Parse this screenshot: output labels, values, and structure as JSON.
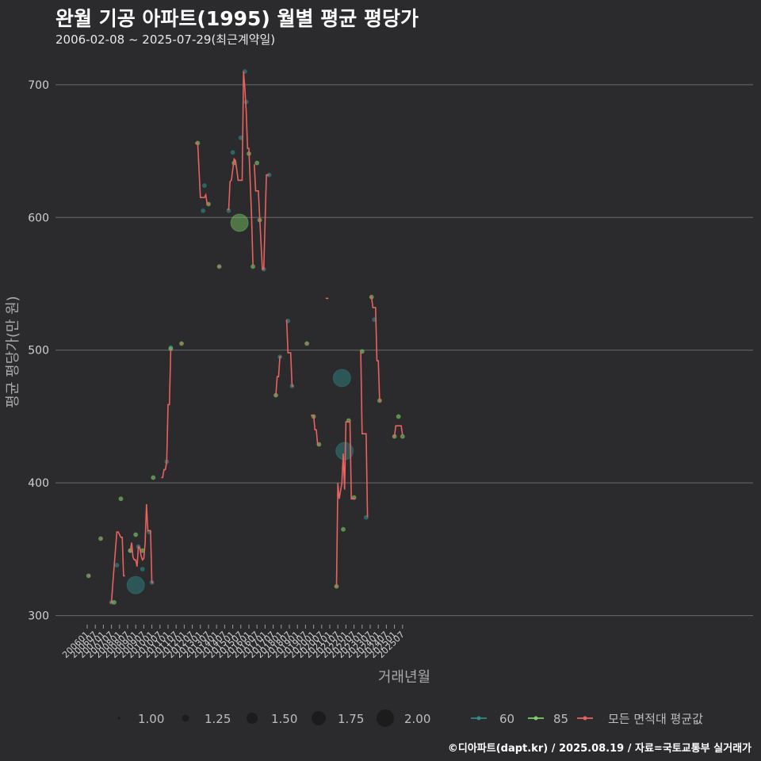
{
  "title": "완월 기공 아파트(1995) 월별 평균 평당가",
  "subtitle": "2006-02-08 ~ 2025-07-29(최근계약일)",
  "credit": "©디아파트(dapt.kr) / 2025.08.19 / 자료=국토교통부 실거래가",
  "colors": {
    "background": "#2b2b2d",
    "grid": "#6a6a6a",
    "avg": "#e8625f",
    "s60": "#2e8b8b",
    "s85": "#7ccf66"
  },
  "chart_data": {
    "type": "line",
    "title": "완월 기공 아파트(1995) 월별 평균 평당가",
    "xlabel": "거래년월",
    "ylabel": "평균 평당가(만 원)",
    "ylim": [
      295,
      722
    ],
    "yticks": [
      300,
      400,
      500,
      600,
      700
    ],
    "xticks": [
      "200601",
      "200607",
      "200701",
      "200707",
      "200801",
      "200807",
      "200901",
      "200907",
      "201001",
      "201007",
      "201101",
      "201107",
      "201201",
      "201207",
      "201301",
      "201307",
      "201401",
      "201407",
      "201501",
      "201507",
      "201601",
      "201607",
      "201701",
      "201707",
      "201801",
      "201807",
      "201901",
      "201907",
      "202001",
      "202007",
      "202101",
      "202107",
      "202201",
      "202207",
      "202301",
      "202307",
      "202401",
      "202407",
      "202501",
      "202507"
    ],
    "grid": true,
    "legend_position": "bottom",
    "size_legend": {
      "values": [
        "1.00",
        "1.25",
        "1.50",
        "1.75",
        "2.00"
      ]
    },
    "color_legend": [
      "60",
      "85",
      "모든 면적대 평균값"
    ],
    "avg_segments": [
      [
        [
          "2006-02",
          330
        ],
        [
          "2006-03",
          330
        ]
      ],
      [
        [
          "2006-11",
          358
        ],
        [
          "2006-12",
          358
        ]
      ],
      [
        [
          "2007-06",
          310
        ],
        [
          "2007-07",
          310
        ],
        [
          "2007-08",
          324
        ],
        [
          "2007-11",
          363
        ],
        [
          "2007-12",
          363
        ],
        [
          "2008-02",
          359
        ],
        [
          "2008-03",
          359
        ],
        [
          "2008-04",
          330
        ],
        [
          "2008-05",
          330
        ]
      ],
      [
        [
          "2008-08",
          349
        ],
        [
          "2008-09",
          349
        ],
        [
          "2008-10",
          355
        ],
        [
          "2008-11",
          344
        ],
        [
          "2008-12",
          342
        ],
        [
          "2009-01",
          342
        ],
        [
          "2009-02",
          337
        ],
        [
          "2009-03",
          352
        ],
        [
          "2009-04",
          351
        ],
        [
          "2009-05",
          345
        ],
        [
          "2009-06",
          342
        ],
        [
          "2009-07",
          343
        ],
        [
          "2009-08",
          355
        ],
        [
          "2009-09",
          384
        ],
        [
          "2009-10",
          364
        ],
        [
          "2009-12",
          364
        ],
        [
          "2010-01",
          325
        ],
        [
          "2010-02",
          325
        ]
      ],
      [
        [
          "2010-08",
          404
        ],
        [
          "2010-09",
          404
        ],
        [
          "2010-10",
          410
        ],
        [
          "2010-11",
          410
        ],
        [
          "2010-12",
          416
        ],
        [
          "2011-01",
          459
        ],
        [
          "2011-02",
          459
        ],
        [
          "2011-03",
          500
        ],
        [
          "2011-04",
          500
        ]
      ],
      [
        [
          "2011-10",
          505
        ],
        [
          "2011-12",
          505
        ]
      ],
      [
        [
          "2012-09",
          656
        ],
        [
          "2012-11",
          656
        ],
        [
          "2013-01",
          615
        ],
        [
          "2013-02",
          615
        ],
        [
          "2013-04",
          615
        ],
        [
          "2013-05",
          617
        ],
        [
          "2013-06",
          610
        ],
        [
          "2013-08",
          610
        ]
      ],
      [
        [
          "2014-02",
          563
        ],
        [
          "2014-04",
          563
        ]
      ],
      [
        [
          "2014-09",
          606
        ],
        [
          "2014-10",
          606
        ],
        [
          "2014-11",
          627
        ],
        [
          "2014-12",
          628
        ],
        [
          "2015-01",
          636
        ],
        [
          "2015-02",
          644
        ],
        [
          "2015-03",
          643
        ],
        [
          "2015-04",
          636
        ],
        [
          "2015-05",
          628
        ],
        [
          "2015-08",
          628
        ],
        [
          "2015-09",
          710
        ],
        [
          "2015-10",
          697
        ],
        [
          "2015-11",
          680
        ],
        [
          "2015-12",
          652
        ],
        [
          "2016-01",
          652
        ],
        [
          "2016-03",
          600
        ],
        [
          "2016-04",
          564
        ]
      ],
      [
        [
          "2016-05",
          640
        ],
        [
          "2016-06",
          620
        ],
        [
          "2016-08",
          620
        ],
        [
          "2016-09",
          600
        ],
        [
          "2016-10",
          580
        ],
        [
          "2016-11",
          561
        ],
        [
          "2016-12",
          561
        ],
        [
          "2017-02",
          632
        ],
        [
          "2017-04",
          632
        ]
      ],
      [
        [
          "2017-08",
          466
        ],
        [
          "2017-09",
          466
        ],
        [
          "2017-10",
          480
        ],
        [
          "2017-11",
          480
        ],
        [
          "2017-12",
          495
        ],
        [
          "2018-01",
          495
        ]
      ],
      [
        [
          "2018-05",
          523
        ],
        [
          "2018-06",
          498
        ],
        [
          "2018-08",
          498
        ],
        [
          "2018-09",
          473
        ],
        [
          "2018-10",
          473
        ]
      ],
      [
        [
          "2019-07",
          505
        ],
        [
          "2019-09",
          505
        ]
      ],
      [
        [
          "2019-11",
          451
        ],
        [
          "2020-01",
          451
        ],
        [
          "2020-02",
          440
        ],
        [
          "2020-03",
          440
        ],
        [
          "2020-04",
          429
        ],
        [
          "2020-05",
          429
        ]
      ],
      [
        [
          "2020-10",
          539
        ],
        [
          "2020-12",
          539
        ]
      ],
      [
        [
          "2021-05",
          322
        ],
        [
          "2021-06",
          322
        ],
        [
          "2021-07",
          400
        ],
        [
          "2021-08",
          388
        ],
        [
          "2021-10",
          400
        ],
        [
          "2021-11",
          422
        ],
        [
          "2021-12",
          395
        ],
        [
          "2022-01",
          446
        ],
        [
          "2022-04",
          446
        ],
        [
          "2022-05",
          388
        ],
        [
          "2022-06",
          388
        ]
      ],
      [
        [
          "2022-06",
          388
        ],
        [
          "2022-08",
          388
        ]
      ],
      [
        [
          "2022-12",
          499
        ],
        [
          "2023-01",
          437
        ],
        [
          "2023-04",
          437
        ],
        [
          "2023-05",
          374
        ]
      ],
      [
        [
          "2023-07",
          540
        ],
        [
          "2023-08",
          540
        ],
        [
          "2023-09",
          532
        ],
        [
          "2023-10",
          532
        ],
        [
          "2023-11",
          532
        ],
        [
          "2023-12",
          492
        ],
        [
          "2024-01",
          492
        ],
        [
          "2024-02",
          462
        ],
        [
          "2024-03",
          462
        ]
      ],
      [
        [
          "2024-12",
          435
        ],
        [
          "2025-01",
          435
        ],
        [
          "2025-02",
          443
        ],
        [
          "2025-06",
          443
        ],
        [
          "2025-07",
          436
        ]
      ]
    ],
    "points_60": [
      [
        "2007-07",
        310,
        1
      ],
      [
        "2007-11",
        338,
        1
      ],
      [
        "2008-09",
        349,
        1
      ],
      [
        "2009-01",
        323,
        2
      ],
      [
        "2009-03",
        352,
        1
      ],
      [
        "2009-06",
        335,
        1
      ],
      [
        "2009-11",
        363,
        1
      ],
      [
        "2010-01",
        325,
        1
      ],
      [
        "2010-12",
        416,
        1
      ],
      [
        "2011-03",
        502,
        1
      ],
      [
        "2013-03",
        605,
        1
      ],
      [
        "2013-04",
        624,
        1
      ],
      [
        "2014-10",
        605,
        1
      ],
      [
        "2015-01",
        649,
        1
      ],
      [
        "2015-07",
        660,
        1
      ],
      [
        "2015-10",
        710,
        1
      ],
      [
        "2015-11",
        687,
        1
      ],
      [
        "2016-12",
        561,
        1
      ],
      [
        "2017-04",
        632,
        1
      ],
      [
        "2017-12",
        495,
        1
      ],
      [
        "2018-06",
        522,
        1
      ],
      [
        "2018-09",
        473,
        1
      ],
      [
        "2021-10",
        479,
        2
      ],
      [
        "2021-12",
        424,
        2
      ],
      [
        "2023-04",
        374,
        1
      ],
      [
        "2023-10",
        523,
        1
      ]
    ],
    "points_85": [
      [
        "2006-02",
        330,
        1
      ],
      [
        "2006-11",
        358,
        1
      ],
      [
        "2007-09",
        310,
        1
      ],
      [
        "2008-02",
        388,
        1
      ],
      [
        "2008-09",
        349,
        1
      ],
      [
        "2009-01",
        361,
        1
      ],
      [
        "2009-06",
        349,
        1
      ],
      [
        "2010-02",
        404,
        1
      ],
      [
        "2011-03",
        501,
        1
      ],
      [
        "2011-11",
        505,
        1
      ],
      [
        "2012-11",
        656,
        1
      ],
      [
        "2013-07",
        610,
        1
      ],
      [
        "2014-03",
        563,
        1
      ],
      [
        "2015-02",
        641,
        1
      ],
      [
        "2015-06",
        596,
        2
      ],
      [
        "2016-01",
        648,
        1
      ],
      [
        "2016-04",
        563,
        1
      ],
      [
        "2016-07",
        641,
        1
      ],
      [
        "2016-09",
        598,
        1
      ],
      [
        "2017-09",
        466,
        1
      ],
      [
        "2019-08",
        505,
        1
      ],
      [
        "2020-01",
        450,
        1
      ],
      [
        "2020-05",
        429,
        1
      ],
      [
        "2021-06",
        322,
        1
      ],
      [
        "2021-11",
        365,
        1
      ],
      [
        "2022-03",
        447,
        1
      ],
      [
        "2022-07",
        389,
        1
      ],
      [
        "2023-01",
        499,
        1
      ],
      [
        "2023-08",
        540,
        1
      ],
      [
        "2024-02",
        462,
        1
      ],
      [
        "2025-01",
        435,
        1
      ],
      [
        "2025-04",
        450,
        1
      ],
      [
        "2025-07",
        435,
        1
      ]
    ]
  }
}
